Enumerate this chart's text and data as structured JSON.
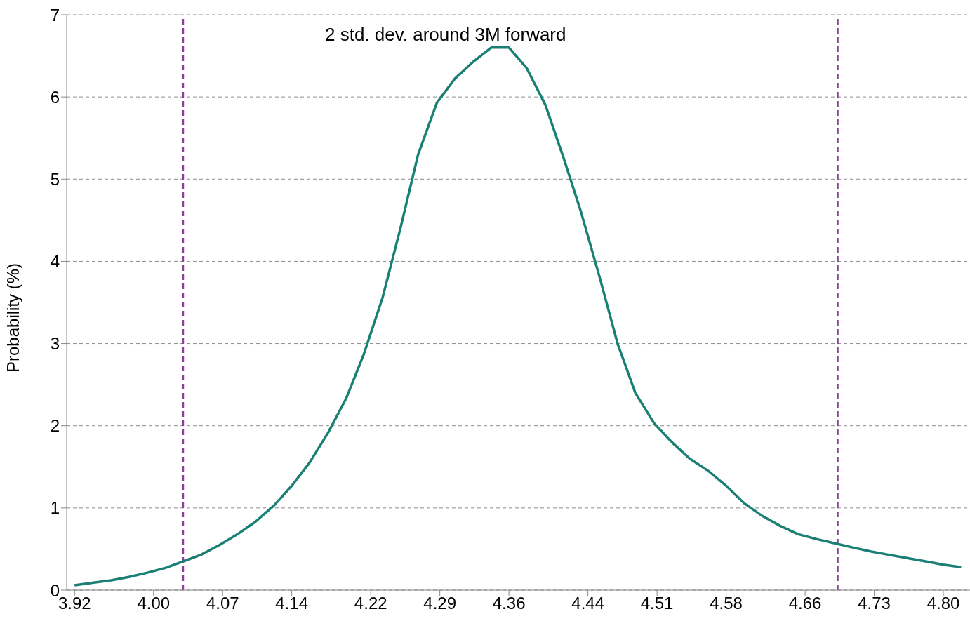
{
  "chart_data": {
    "type": "line",
    "ylabel": "Probability (%)",
    "annotations": [
      "2 std. dev. around 3M forward"
    ],
    "x": [
      3.92,
      3.938,
      3.957,
      3.975,
      3.993,
      4.012,
      4.03,
      4.048,
      4.067,
      4.085,
      4.103,
      4.122,
      4.14,
      4.158,
      4.177,
      4.195,
      4.213,
      4.232,
      4.25,
      4.268,
      4.287,
      4.305,
      4.323,
      4.342,
      4.36,
      4.378,
      4.397,
      4.415,
      4.433,
      4.452,
      4.47,
      4.488,
      4.507,
      4.525,
      4.543,
      4.562,
      4.58,
      4.598,
      4.617,
      4.635,
      4.653,
      4.672,
      4.69,
      4.708,
      4.727,
      4.745,
      4.763,
      4.782,
      4.8,
      4.818
    ],
    "series": [
      {
        "color": "#1a7f74",
        "values": [
          0.06,
          0.09,
          0.12,
          0.16,
          0.21,
          0.27,
          0.35,
          0.43,
          0.55,
          0.68,
          0.83,
          1.03,
          1.27,
          1.55,
          1.92,
          2.33,
          2.87,
          3.56,
          4.4,
          5.3,
          5.93,
          6.22,
          6.42,
          6.6,
          6.6,
          6.35,
          5.9,
          5.27,
          4.6,
          3.8,
          3.0,
          2.4,
          2.03,
          1.8,
          1.6,
          1.45,
          1.27,
          1.06,
          0.9,
          0.78,
          0.68,
          0.62,
          0.57,
          0.52,
          0.47,
          0.43,
          0.39,
          0.35,
          0.31,
          0.28
        ]
      }
    ],
    "xlim": [
      3.912,
      4.827
    ],
    "xticks": [
      3.92,
      {
        "value": 4,
        "label": "4.00"
      },
      4.07,
      4.14,
      4.22,
      4.29,
      4.36,
      4.44,
      4.51,
      4.58,
      4.66,
      4.73,
      {
        "value": 4.8,
        "label": "4.80"
      }
    ],
    "ylim": [
      0,
      7
    ],
    "yticks": [
      0,
      1,
      2,
      3,
      4,
      5,
      6,
      7
    ],
    "ref_lines": [
      {
        "axis": "x",
        "value": 4.03,
        "color": "#8e3f9e",
        "line_style": "dashed"
      },
      {
        "axis": "x",
        "value": 4.693,
        "color": "#8e3f9e",
        "line_style": "dashed"
      }
    ],
    "grid": "y",
    "legend": false,
    "marker": "none",
    "line_style": "solid"
  }
}
